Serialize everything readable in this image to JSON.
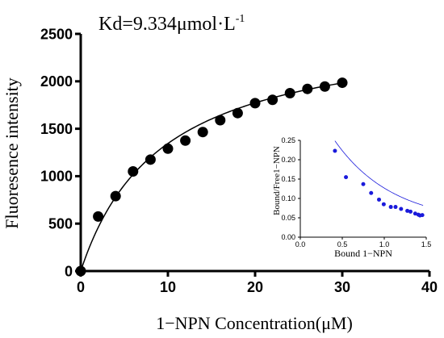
{
  "chart_data": [
    {
      "type": "scatter",
      "title": "Kd=9.334μmol·L",
      "title_superscript": "-1",
      "xlabel": "1−NPN Concentration(μM)",
      "ylabel": "Fluoresence intensity",
      "xlim": [
        0,
        40
      ],
      "ylim": [
        0,
        2500
      ],
      "xticks": [
        "0",
        "10",
        "20",
        "30",
        "40"
      ],
      "yticks": [
        "0",
        "500",
        "1000",
        "1500",
        "2000",
        "2500"
      ],
      "grid": false,
      "point_color": "#000000",
      "series": [
        {
          "x": [
            0,
            2,
            4,
            6,
            8,
            10,
            12,
            14,
            16,
            18,
            20,
            22,
            24,
            26,
            28,
            30
          ],
          "y": [
            0,
            575,
            790,
            1050,
            1175,
            1290,
            1375,
            1465,
            1590,
            1665,
            1770,
            1805,
            1875,
            1920,
            1945,
            1985
          ]
        }
      ],
      "fit": {
        "type": "saturation",
        "bmax": 2600,
        "kd": 9.334,
        "x_range": [
          0,
          30
        ],
        "color": "#000000"
      }
    },
    {
      "type": "scatter",
      "title": "",
      "xlabel": "Bound 1−NPN",
      "ylabel": "Bound/Free1−NPN",
      "xlim": [
        0,
        1.6
      ],
      "ylim": [
        0,
        0.25
      ],
      "xticks": [
        "0.0",
        "0.5",
        "1.0",
        "1.5"
      ],
      "yticks": [
        "0.00",
        "0.05",
        "0.10",
        "0.15",
        "0.20",
        "0.25"
      ],
      "grid": false,
      "point_color": "#1a1adb",
      "series": [
        {
          "x": [
            0.44,
            0.58,
            0.8,
            0.9,
            1.0,
            1.06,
            1.15,
            1.21,
            1.28,
            1.36,
            1.4,
            1.46,
            1.5,
            1.52,
            1.55
          ],
          "y": [
            0.223,
            0.155,
            0.137,
            0.114,
            0.097,
            0.085,
            0.078,
            0.078,
            0.073,
            0.068,
            0.066,
            0.061,
            0.058,
            0.056,
            0.057
          ]
        }
      ],
      "fit": {
        "type": "exponential",
        "a": 0.2138,
        "k": 1.35,
        "c": 0.035,
        "x_range": [
          0.44,
          1.56
        ],
        "color": "#1a1adb"
      }
    }
  ]
}
